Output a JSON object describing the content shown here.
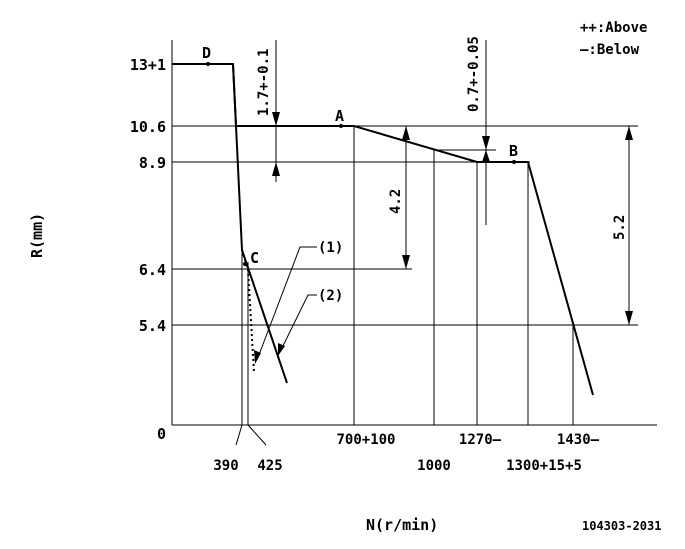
{
  "legend": {
    "above": "++:Above",
    "below": "—:Below"
  },
  "axes": {
    "ylabel": "R(mm)",
    "xlabel": "N(r/min)"
  },
  "y_ticks": [
    "13+1",
    "10.6",
    "8.9",
    "6.4",
    "5.4",
    "0"
  ],
  "x_ticks": [
    "390",
    "425",
    "700+100",
    "1000",
    "1270—",
    "1300+15+5",
    "1430—"
  ],
  "points": {
    "D": "D",
    "A": "A",
    "B": "B",
    "C": "C"
  },
  "dimensions": {
    "d1": "1.7+-0.1",
    "d2": "0.7+-0.05",
    "d3": "4.2",
    "d4": "5.2"
  },
  "callouts": {
    "c1": "(1)",
    "c2": "(2)"
  },
  "figure_code": "104303-2031"
}
